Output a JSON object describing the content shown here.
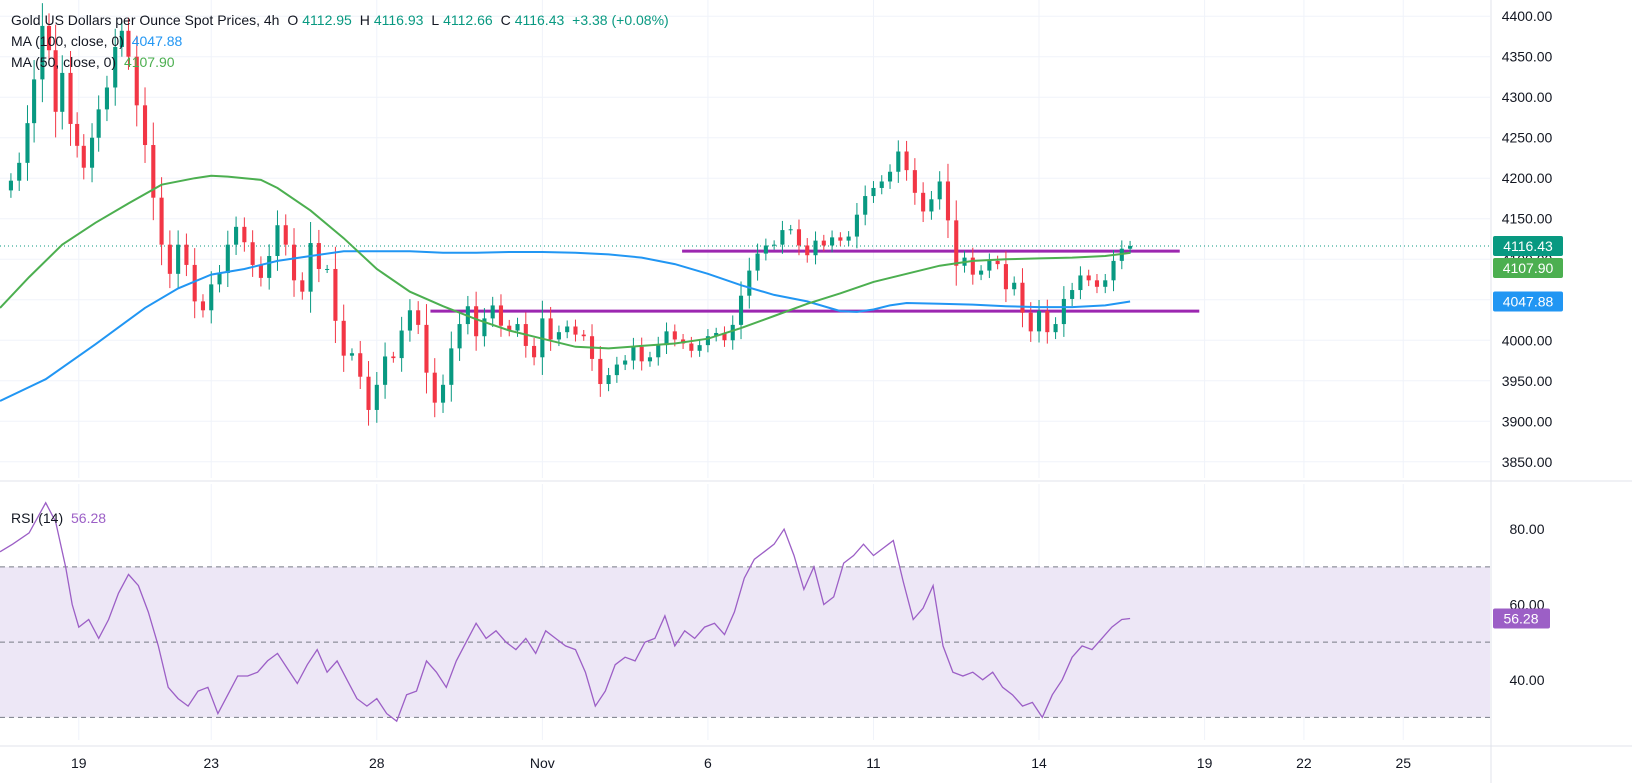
{
  "header": {
    "title": "Gold US Dollars per Ounce Spot Prices, 4h",
    "o_label": "O",
    "o_value": "4112.95",
    "h_label": "H",
    "h_value": "4116.93",
    "l_label": "L",
    "l_value": "4112.66",
    "c_label": "C",
    "c_value": "4116.43",
    "change": "+3.38 (+0.08%)"
  },
  "legend": {
    "ma100_label": "MA (100, close, 0)",
    "ma100_value": "4047.88",
    "ma50_label": "MA (50, close, 0)",
    "ma50_value": "4107.90",
    "rsi_label": "RSI (14)",
    "rsi_value": "56.28"
  },
  "colors": {
    "up": "#089981",
    "down": "#f23645",
    "ma100": "#2196f3",
    "ma50": "#4caf50",
    "rsi": "#9c5fc6",
    "rsi_band": "#ede7f6",
    "resistance": "#9c27b0",
    "grid": "#f0f3fa",
    "axis_text": "#131722"
  },
  "chart_data": [
    {
      "type": "candlestick",
      "interval": "4h",
      "ylim": [
        3830,
        4420
      ],
      "yticks": [
        "3850.00",
        "3900.00",
        "3950.00",
        "4000.00",
        "4050.00",
        "4100.00",
        "4150.00",
        "4200.00",
        "4250.00",
        "4300.00",
        "4350.00",
        "4400.00"
      ],
      "ytick_values": [
        3850,
        3900,
        3950,
        4000,
        4050,
        4100,
        4150,
        4200,
        4250,
        4300,
        4350,
        4400
      ],
      "xticks": [
        {
          "label": "19",
          "x": 18.0
        },
        {
          "label": "23",
          "x": 22.0
        },
        {
          "label": "28",
          "x": 27.0
        },
        {
          "label": "Nov",
          "x": 32.0
        },
        {
          "label": "6",
          "x": 37.0
        },
        {
          "label": "11",
          "x": 42.0
        },
        {
          "label": "14",
          "x": 47.0
        },
        {
          "label": "19",
          "x": 52.0
        },
        {
          "label": "22",
          "x": 55.0
        },
        {
          "label": "25",
          "x": 58.0
        }
      ],
      "x_range": [
        15.62,
        60.62
      ],
      "last_price": 4116.43,
      "price_labels": [
        {
          "value": 4116.43,
          "text": "4116.43",
          "color": "#089981"
        },
        {
          "value": 4107.9,
          "text": "4107.90",
          "color": "#4caf50"
        },
        {
          "value": 4047.88,
          "text": "4047.88",
          "color": "#2196f3"
        }
      ],
      "horizontal_lines": [
        {
          "y": 4110,
          "x_start": 36.22,
          "x_end": 51.25
        },
        {
          "y": 4036,
          "x_start": 28.62,
          "x_end": 51.84
        }
      ],
      "candles_anchor": [
        15.75,
        4185,
        15.95,
        4197,
        16.2,
        4219,
        16.45,
        4268,
        16.65,
        4322,
        16.9,
        4388,
        17.1,
        4358,
        17.3,
        4282,
        17.5,
        4330,
        17.75,
        4267,
        17.95,
        4240,
        18.15,
        4213,
        18.4,
        4250,
        18.6,
        4285,
        18.85,
        4312,
        19.1,
        4362,
        19.3,
        4382,
        19.5,
        4350,
        19.75,
        4290,
        20.0,
        4241,
        20.25,
        4176,
        20.5,
        4118,
        20.75,
        4082,
        21.0,
        4118,
        21.25,
        4093,
        21.5,
        4048,
        21.75,
        4037,
        22.0,
        4069,
        22.25,
        4083,
        22.5,
        4118,
        22.75,
        4140,
        23.0,
        4121,
        23.25,
        4093,
        23.5,
        4077,
        23.75,
        4104,
        24.0,
        4142,
        24.25,
        4118,
        24.5,
        4074,
        24.75,
        4060,
        25.0,
        4120,
        25.25,
        4088,
        25.5,
        4088,
        25.75,
        4024,
        26.0,
        3981,
        26.25,
        3984,
        26.5,
        3955,
        26.75,
        3914,
        27.0,
        3945,
        27.25,
        3980,
        27.5,
        3978,
        27.75,
        4012,
        28.0,
        4037,
        28.25,
        4019,
        28.5,
        3960,
        28.75,
        3923,
        29.0,
        3945,
        29.25,
        3990,
        29.5,
        4020,
        29.75,
        4042,
        30.0,
        4005,
        30.25,
        4027,
        30.5,
        4043,
        30.75,
        4018,
        31.0,
        4012,
        31.25,
        4020,
        31.5,
        3993,
        31.75,
        3979,
        32.0,
        4027,
        32.25,
        4001,
        32.5,
        4010,
        32.75,
        4017,
        33.0,
        4007,
        33.25,
        4005,
        33.5,
        3977,
        33.75,
        3946,
        34.0,
        3957,
        34.25,
        3970,
        34.5,
        3975,
        34.75,
        3992,
        35.0,
        3974,
        35.25,
        3979,
        35.5,
        3994,
        35.75,
        4011,
        36.0,
        4001,
        36.25,
        3996,
        36.5,
        3987,
        36.75,
        3994,
        37.0,
        4005,
        37.25,
        4009,
        37.5,
        4000,
        37.75,
        4019,
        38.0,
        4055,
        38.25,
        4086,
        38.5,
        4107,
        38.75,
        4117,
        39.0,
        4118,
        39.25,
        4136,
        39.5,
        4137,
        39.75,
        4117,
        40.0,
        4105,
        40.25,
        4123,
        40.5,
        4117,
        40.75,
        4127,
        41.0,
        4123,
        41.25,
        4128,
        41.5,
        4155,
        41.75,
        4178,
        42.0,
        4188,
        42.25,
        4196,
        42.5,
        4208,
        42.75,
        4233,
        43.0,
        4210,
        43.25,
        4182,
        43.5,
        4159,
        43.75,
        4174,
        44.0,
        4196,
        44.25,
        4148,
        44.5,
        4092,
        44.75,
        4102,
        45.0,
        4081,
        45.25,
        4086,
        45.5,
        4098,
        45.75,
        4094,
        46.0,
        4063,
        46.25,
        4071,
        46.5,
        4034,
        46.75,
        4011,
        47.0,
        4036,
        47.25,
        4010,
        47.5,
        4020,
        47.75,
        4051,
        48.0,
        4062,
        48.25,
        4080,
        48.5,
        4074,
        48.75,
        4066,
        49.0,
        4074,
        49.25,
        4098,
        49.5,
        4113,
        49.75,
        4116.43
      ],
      "ma100": [
        [
          15.62,
          3925
        ],
        [
          17.0,
          3952
        ],
        [
          18.5,
          3995
        ],
        [
          20.0,
          4040
        ],
        [
          21.0,
          4064
        ],
        [
          22.0,
          4081
        ],
        [
          23.0,
          4088
        ],
        [
          24.0,
          4098
        ],
        [
          25.0,
          4104
        ],
        [
          26.0,
          4110
        ],
        [
          27.0,
          4110
        ],
        [
          28.0,
          4110
        ],
        [
          29.0,
          4108
        ],
        [
          30.0,
          4108
        ],
        [
          31.0,
          4109
        ],
        [
          32.0,
          4109
        ],
        [
          33.0,
          4108
        ],
        [
          34.0,
          4106
        ],
        [
          35.0,
          4102
        ],
        [
          36.0,
          4094
        ],
        [
          37.0,
          4082
        ],
        [
          38.0,
          4068
        ],
        [
          39.0,
          4056
        ],
        [
          40.0,
          4048
        ],
        [
          41.0,
          4036
        ],
        [
          41.5,
          4035
        ],
        [
          42.0,
          4038
        ],
        [
          42.5,
          4043
        ],
        [
          43.0,
          4046
        ],
        [
          44.0,
          4045
        ],
        [
          45.0,
          4044
        ],
        [
          46.0,
          4042
        ],
        [
          47.0,
          4041
        ],
        [
          48.0,
          4041
        ],
        [
          49.0,
          4043
        ],
        [
          49.75,
          4047.88
        ]
      ],
      "ma50": [
        [
          15.62,
          4040
        ],
        [
          16.5,
          4078
        ],
        [
          17.5,
          4118
        ],
        [
          18.5,
          4145
        ],
        [
          19.5,
          4169
        ],
        [
          20.5,
          4192
        ],
        [
          21.5,
          4200
        ],
        [
          22.0,
          4203
        ],
        [
          22.5,
          4202
        ],
        [
          23.0,
          4200
        ],
        [
          23.5,
          4198
        ],
        [
          24.0,
          4188
        ],
        [
          25.0,
          4160
        ],
        [
          26.0,
          4126
        ],
        [
          27.0,
          4088
        ],
        [
          28.0,
          4060
        ],
        [
          29.0,
          4042
        ],
        [
          30.0,
          4026
        ],
        [
          31.0,
          4012
        ],
        [
          32.0,
          4002
        ],
        [
          33.0,
          3992
        ],
        [
          34.0,
          3990
        ],
        [
          35.0,
          3993
        ],
        [
          36.0,
          3996
        ],
        [
          37.0,
          4002
        ],
        [
          38.0,
          4015
        ],
        [
          39.0,
          4030
        ],
        [
          40.0,
          4045
        ],
        [
          41.0,
          4058
        ],
        [
          42.0,
          4072
        ],
        [
          43.0,
          4082
        ],
        [
          44.0,
          4092
        ],
        [
          45.0,
          4098
        ],
        [
          46.0,
          4100
        ],
        [
          47.0,
          4101
        ],
        [
          48.0,
          4102
        ],
        [
          49.0,
          4104
        ],
        [
          49.75,
          4107.9
        ]
      ]
    },
    {
      "type": "line",
      "title": "RSI (14)",
      "ylim": [
        24,
        92
      ],
      "yticks": [
        "40.00",
        "60.00",
        "80.00"
      ],
      "ytick_values": [
        40,
        60,
        80
      ],
      "band": [
        30,
        70
      ],
      "midline": 50,
      "last_value": 56.28,
      "series": [
        {
          "values": [
            [
              15.62,
              74
            ],
            [
              16.0,
              76
            ],
            [
              16.5,
              79
            ],
            [
              17.0,
              87
            ],
            [
              17.3,
              82
            ],
            [
              17.6,
              70
            ],
            [
              17.8,
              60
            ],
            [
              18.0,
              54
            ],
            [
              18.3,
              56
            ],
            [
              18.6,
              51
            ],
            [
              18.9,
              56
            ],
            [
              19.2,
              63
            ],
            [
              19.5,
              68
            ],
            [
              19.8,
              65
            ],
            [
              20.1,
              58
            ],
            [
              20.4,
              49
            ],
            [
              20.7,
              38
            ],
            [
              21.0,
              35
            ],
            [
              21.3,
              33
            ],
            [
              21.6,
              37
            ],
            [
              21.9,
              38
            ],
            [
              22.2,
              31
            ],
            [
              22.5,
              36
            ],
            [
              22.8,
              41
            ],
            [
              23.1,
              41
            ],
            [
              23.4,
              42
            ],
            [
              23.7,
              45
            ],
            [
              24.0,
              47
            ],
            [
              24.3,
              43
            ],
            [
              24.6,
              39
            ],
            [
              24.9,
              44
            ],
            [
              25.2,
              48
            ],
            [
              25.5,
              42
            ],
            [
              25.8,
              45
            ],
            [
              26.1,
              40
            ],
            [
              26.4,
              35
            ],
            [
              26.7,
              33
            ],
            [
              27.0,
              35
            ],
            [
              27.3,
              31
            ],
            [
              27.6,
              29
            ],
            [
              27.9,
              36
            ],
            [
              28.2,
              37
            ],
            [
              28.5,
              45
            ],
            [
              28.8,
              42
            ],
            [
              29.1,
              38
            ],
            [
              29.4,
              45
            ],
            [
              29.7,
              50
            ],
            [
              30.0,
              55
            ],
            [
              30.3,
              51
            ],
            [
              30.6,
              53
            ],
            [
              30.9,
              50
            ],
            [
              31.2,
              48
            ],
            [
              31.5,
              51
            ],
            [
              31.8,
              47
            ],
            [
              32.1,
              53
            ],
            [
              32.4,
              51
            ],
            [
              32.7,
              49
            ],
            [
              33.0,
              48
            ],
            [
              33.3,
              42
            ],
            [
              33.6,
              33
            ],
            [
              33.9,
              37
            ],
            [
              34.2,
              44
            ],
            [
              34.5,
              46
            ],
            [
              34.8,
              45
            ],
            [
              35.1,
              50
            ],
            [
              35.4,
              51
            ],
            [
              35.7,
              57
            ],
            [
              36.0,
              49
            ],
            [
              36.3,
              53
            ],
            [
              36.6,
              51
            ],
            [
              36.9,
              54
            ],
            [
              37.2,
              55
            ],
            [
              37.5,
              52
            ],
            [
              37.8,
              58
            ],
            [
              38.1,
              67
            ],
            [
              38.4,
              72
            ],
            [
              38.7,
              74
            ],
            [
              39.0,
              76
            ],
            [
              39.3,
              80
            ],
            [
              39.6,
              73
            ],
            [
              39.9,
              64
            ],
            [
              40.2,
              70
            ],
            [
              40.5,
              60
            ],
            [
              40.8,
              62
            ],
            [
              41.1,
              71
            ],
            [
              41.4,
              73
            ],
            [
              41.7,
              76
            ],
            [
              42.0,
              73
            ],
            [
              42.3,
              75
            ],
            [
              42.6,
              77
            ],
            [
              42.9,
              66
            ],
            [
              43.2,
              56
            ],
            [
              43.5,
              59
            ],
            [
              43.8,
              65
            ],
            [
              44.1,
              49
            ],
            [
              44.4,
              42
            ],
            [
              44.7,
              41
            ],
            [
              45.0,
              42
            ],
            [
              45.3,
              40
            ],
            [
              45.6,
              42
            ],
            [
              45.9,
              38
            ],
            [
              46.2,
              36
            ],
            [
              46.5,
              33
            ],
            [
              46.8,
              34
            ],
            [
              47.1,
              30
            ],
            [
              47.4,
              36
            ],
            [
              47.7,
              40
            ],
            [
              48.0,
              46
            ],
            [
              48.3,
              49
            ],
            [
              48.6,
              48
            ],
            [
              48.9,
              51
            ],
            [
              49.2,
              54
            ],
            [
              49.5,
              56
            ],
            [
              49.75,
              56.28
            ]
          ]
        }
      ]
    }
  ]
}
